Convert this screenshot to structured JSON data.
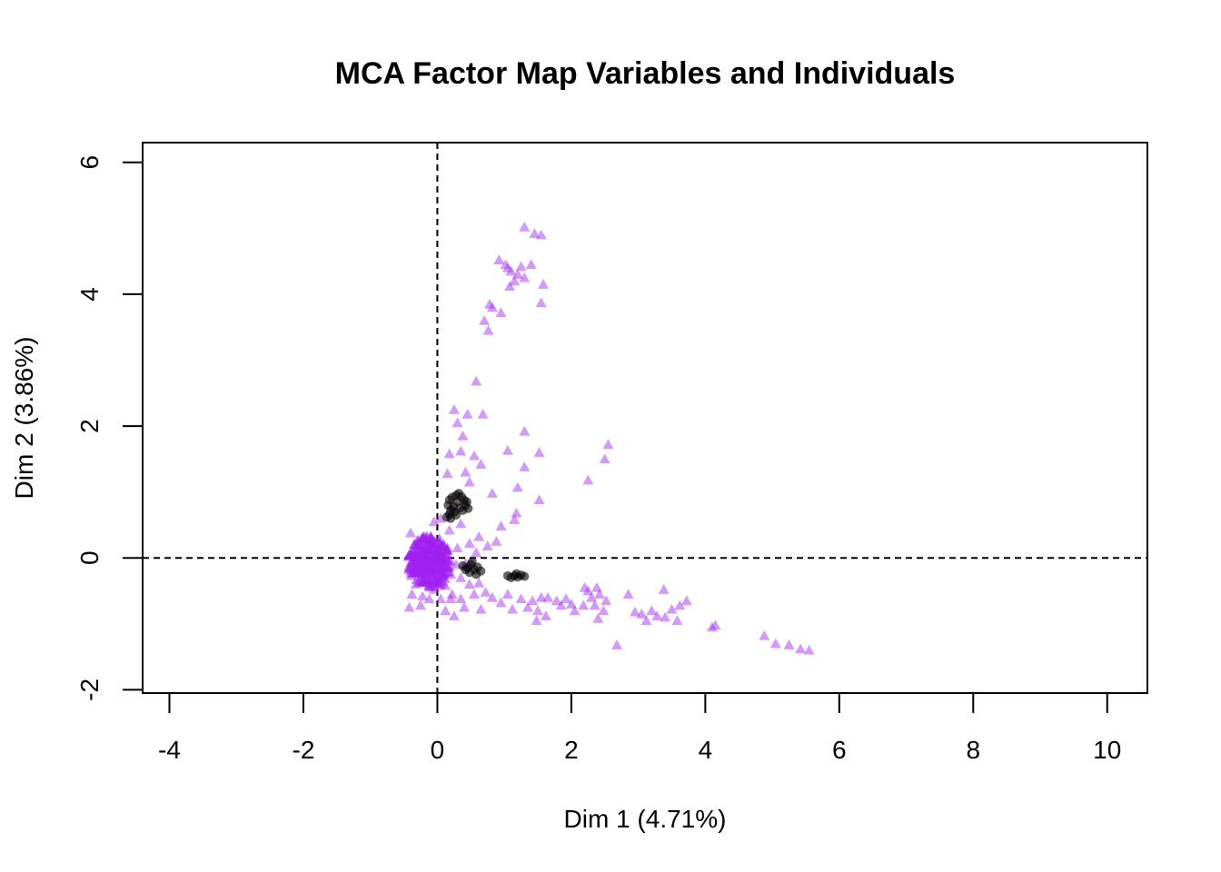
{
  "chart_data": {
    "type": "scatter",
    "title": "MCA Factor Map Variables and Individuals",
    "xlabel": "Dim 1 (4.71%)",
    "ylabel": "Dim 2 (3.86%)",
    "xlim": [
      -4.4,
      10.6
    ],
    "ylim": [
      -2.05,
      6.3
    ],
    "x_ticks": [
      -4,
      -2,
      0,
      2,
      4,
      6,
      8,
      10
    ],
    "y_ticks": [
      -2,
      0,
      2,
      4,
      6
    ],
    "reference_lines": {
      "x": 0,
      "y": 0,
      "style": "dashed"
    },
    "grid": false,
    "legend": "none",
    "colors": {
      "individuals": "#A020F0",
      "variables": "#000000"
    },
    "series": [
      {
        "marker": "triangle",
        "color": "#A020F0",
        "points": [
          [
            1.3,
            5.02
          ],
          [
            1.45,
            4.92
          ],
          [
            1.55,
            4.9
          ],
          [
            0.92,
            4.52
          ],
          [
            1.02,
            4.45
          ],
          [
            1.05,
            4.4
          ],
          [
            1.1,
            4.35
          ],
          [
            1.25,
            4.42
          ],
          [
            1.4,
            4.45
          ],
          [
            1.2,
            4.3
          ],
          [
            1.3,
            4.25
          ],
          [
            1.15,
            4.2
          ],
          [
            1.08,
            4.12
          ],
          [
            1.58,
            4.15
          ],
          [
            1.55,
            3.87
          ],
          [
            0.78,
            3.85
          ],
          [
            0.82,
            3.8
          ],
          [
            0.7,
            3.6
          ],
          [
            0.76,
            3.45
          ],
          [
            0.95,
            3.72
          ],
          [
            0.58,
            2.68
          ],
          [
            0.25,
            2.25
          ],
          [
            0.3,
            2.05
          ],
          [
            0.45,
            2.18
          ],
          [
            0.68,
            2.18
          ],
          [
            0.38,
            1.85
          ],
          [
            0.35,
            1.62
          ],
          [
            0.18,
            1.58
          ],
          [
            0.55,
            1.55
          ],
          [
            0.65,
            1.42
          ],
          [
            0.42,
            1.3
          ],
          [
            0.15,
            1.28
          ],
          [
            0.48,
            1.15
          ],
          [
            1.3,
            1.92
          ],
          [
            1.05,
            1.63
          ],
          [
            1.52,
            1.6
          ],
          [
            1.3,
            1.38
          ],
          [
            1.2,
            1.07
          ],
          [
            0.82,
            0.98
          ],
          [
            1.52,
            0.88
          ],
          [
            1.18,
            0.68
          ],
          [
            1.15,
            0.58
          ],
          [
            0.95,
            0.48
          ],
          [
            2.55,
            1.72
          ],
          [
            2.5,
            1.5
          ],
          [
            2.25,
            1.18
          ],
          [
            0.22,
            0.78
          ],
          [
            0.05,
            0.6
          ],
          [
            -0.05,
            0.55
          ],
          [
            0.18,
            0.42
          ],
          [
            0.35,
            0.52
          ],
          [
            0.62,
            0.32
          ],
          [
            0.75,
            0.18
          ],
          [
            0.48,
            0.22
          ],
          [
            0.88,
            0.25
          ],
          [
            0.58,
            0.08
          ],
          [
            0.3,
            0.15
          ],
          [
            -0.4,
            0.38
          ],
          [
            -0.3,
            0.2
          ],
          [
            -0.18,
            0.32
          ],
          [
            -0.42,
            0.05
          ],
          [
            -0.25,
            -0.1
          ],
          [
            -0.35,
            -0.22
          ],
          [
            -0.15,
            -0.08
          ],
          [
            -0.05,
            0.12
          ],
          [
            0.05,
            -0.02
          ],
          [
            -0.2,
            0.05
          ],
          [
            -0.1,
            -0.22
          ],
          [
            0.1,
            0.18
          ],
          [
            -0.32,
            -0.4
          ],
          [
            -0.15,
            -0.35
          ],
          [
            0.0,
            -0.3
          ],
          [
            -0.38,
            -0.55
          ],
          [
            -0.22,
            -0.58
          ],
          [
            -0.05,
            -0.48
          ],
          [
            0.05,
            -0.62
          ],
          [
            -0.42,
            -0.75
          ],
          [
            -0.25,
            -0.72
          ],
          [
            -0.12,
            -0.62
          ],
          [
            0.12,
            -0.42
          ],
          [
            0.2,
            -0.25
          ],
          [
            0.28,
            -0.1
          ],
          [
            0.42,
            -0.08
          ],
          [
            0.35,
            -0.3
          ],
          [
            0.22,
            -0.55
          ],
          [
            0.35,
            -0.62
          ],
          [
            0.48,
            -0.4
          ],
          [
            0.55,
            -0.55
          ],
          [
            0.62,
            -0.38
          ],
          [
            0.72,
            -0.52
          ],
          [
            0.82,
            -0.6
          ],
          [
            0.25,
            -0.88
          ],
          [
            0.65,
            -0.78
          ],
          [
            0.4,
            -0.75
          ],
          [
            0.2,
            -0.62
          ],
          [
            0.08,
            -0.15
          ],
          [
            0.15,
            0.05
          ],
          [
            -0.28,
            0.15
          ],
          [
            0.12,
            -0.8
          ],
          [
            1.05,
            -0.55
          ],
          [
            1.25,
            -0.62
          ],
          [
            1.42,
            -0.65
          ],
          [
            1.55,
            -0.6
          ],
          [
            1.5,
            -0.8
          ],
          [
            1.35,
            -0.75
          ],
          [
            1.12,
            -0.78
          ],
          [
            0.95,
            -0.68
          ],
          [
            1.48,
            -0.95
          ],
          [
            1.62,
            -0.88
          ],
          [
            1.65,
            -0.6
          ],
          [
            1.78,
            -0.65
          ],
          [
            1.85,
            -0.72
          ],
          [
            1.92,
            -0.62
          ],
          [
            2.0,
            -0.7
          ],
          [
            2.05,
            -0.8
          ],
          [
            2.18,
            -0.72
          ],
          [
            2.3,
            -0.6
          ],
          [
            2.38,
            -0.45
          ],
          [
            2.42,
            -0.55
          ],
          [
            2.25,
            -0.5
          ],
          [
            2.2,
            -0.45
          ],
          [
            2.35,
            -0.72
          ],
          [
            2.4,
            -0.92
          ],
          [
            2.48,
            -0.8
          ],
          [
            2.52,
            -0.65
          ],
          [
            2.68,
            -1.32
          ],
          [
            2.85,
            -0.55
          ],
          [
            2.95,
            -0.82
          ],
          [
            3.05,
            -0.85
          ],
          [
            3.12,
            -0.95
          ],
          [
            3.2,
            -0.8
          ],
          [
            3.28,
            -0.88
          ],
          [
            3.4,
            -0.9
          ],
          [
            3.38,
            -0.48
          ],
          [
            3.5,
            -0.78
          ],
          [
            3.62,
            -0.72
          ],
          [
            3.72,
            -0.65
          ],
          [
            3.58,
            -0.95
          ],
          [
            4.1,
            -1.05
          ],
          [
            4.15,
            -1.02
          ],
          [
            4.88,
            -1.18
          ],
          [
            5.05,
            -1.3
          ],
          [
            5.25,
            -1.32
          ],
          [
            5.42,
            -1.38
          ],
          [
            5.55,
            -1.4
          ]
        ]
      },
      {
        "marker": "filled-circle-cluster",
        "color": "#000000",
        "points": [
          [
            0.18,
            0.88
          ],
          [
            0.22,
            0.92
          ],
          [
            0.28,
            0.95
          ],
          [
            0.32,
            0.98
          ],
          [
            0.36,
            0.93
          ],
          [
            0.4,
            0.88
          ],
          [
            0.44,
            0.85
          ],
          [
            0.3,
            0.85
          ],
          [
            0.24,
            0.78
          ],
          [
            0.2,
            0.72
          ],
          [
            0.18,
            0.66
          ],
          [
            0.26,
            0.7
          ],
          [
            0.34,
            0.76
          ],
          [
            0.38,
            0.72
          ],
          [
            0.14,
            0.62
          ],
          [
            0.2,
            0.6
          ],
          [
            0.28,
            0.65
          ],
          [
            0.42,
            0.8
          ],
          [
            0.46,
            0.75
          ],
          [
            0.16,
            0.8
          ],
          [
            0.38,
            -0.12
          ],
          [
            0.45,
            -0.15
          ],
          [
            0.5,
            -0.1
          ],
          [
            0.55,
            -0.18
          ],
          [
            0.6,
            -0.14
          ],
          [
            0.65,
            -0.2
          ],
          [
            0.48,
            -0.22
          ],
          [
            0.42,
            -0.18
          ],
          [
            0.52,
            -0.06
          ],
          [
            0.58,
            -0.25
          ],
          [
            1.05,
            -0.27
          ],
          [
            1.1,
            -0.3
          ],
          [
            1.15,
            -0.27
          ],
          [
            1.2,
            -0.29
          ],
          [
            1.25,
            -0.26
          ],
          [
            1.3,
            -0.28
          ],
          [
            1.18,
            -0.24
          ]
        ]
      }
    ]
  }
}
